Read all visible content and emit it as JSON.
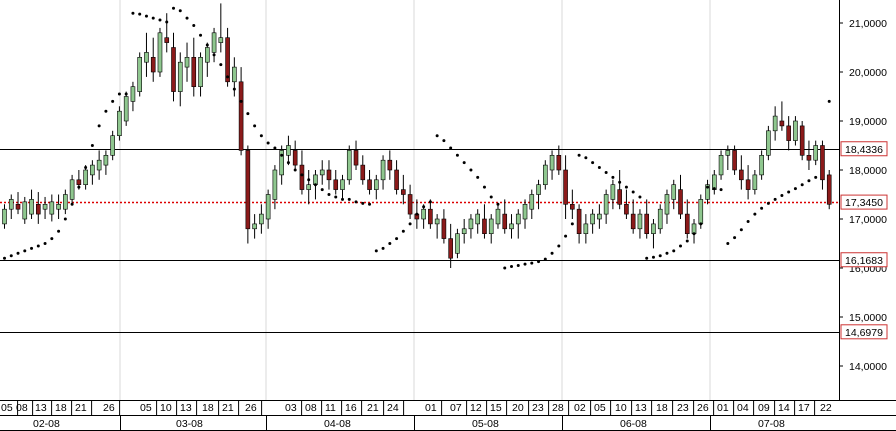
{
  "chart_data": {
    "type": "candlestick",
    "title": "",
    "xlabel": "",
    "ylabel": "",
    "ylim": [
      13.4,
      21.35
    ],
    "y_ticks": [
      "21,0000",
      "20,0000",
      "19,0000",
      "18,0000",
      "17,0000",
      "16,0000",
      "15,0000",
      "14,0000"
    ],
    "day_ticks": [
      "05",
      "08",
      "13",
      "18",
      "21",
      "26",
      "05",
      "10",
      "13",
      "18",
      "21",
      "26",
      "03",
      "08",
      "11",
      "16",
      "21",
      "24",
      "01",
      "07",
      "12",
      "15",
      "20",
      "23",
      "28",
      "02",
      "05",
      "10",
      "13",
      "18",
      "23",
      "26",
      "01",
      "04",
      "09",
      "14",
      "17",
      "22"
    ],
    "month_labels": [
      "02-08",
      "03-08",
      "04-08",
      "05-08",
      "06-08",
      "07-08"
    ],
    "grid": "vertical month dividers only",
    "horizontal_levels": [
      {
        "value": 18.4336,
        "label": "18,4336",
        "style": "solid"
      },
      {
        "value": 17.345,
        "label": "17,3450",
        "style": "dotted-red"
      },
      {
        "value": 16.1683,
        "label": "16,1683",
        "style": "solid"
      },
      {
        "value": 14.6979,
        "label": "14,6979",
        "style": "solid"
      }
    ],
    "colors": {
      "up": "#8fc78f",
      "down": "#8b1a1a",
      "level_label_border": "#cc3333",
      "current_line": "#dd0000"
    },
    "candles": [
      [
        16.9,
        17.3,
        16.8,
        17.2
      ],
      [
        17.2,
        17.5,
        17.0,
        17.4
      ],
      [
        17.3,
        17.55,
        17.1,
        17.2
      ],
      [
        17.0,
        17.45,
        16.9,
        17.35
      ],
      [
        17.1,
        17.6,
        17.0,
        17.4
      ],
      [
        17.3,
        17.55,
        16.9,
        17.1
      ],
      [
        17.2,
        17.45,
        17.0,
        17.3
      ],
      [
        17.1,
        17.5,
        16.95,
        17.35
      ],
      [
        17.2,
        17.5,
        17.0,
        17.3
      ],
      [
        17.2,
        17.6,
        17.1,
        17.5
      ],
      [
        17.4,
        17.9,
        17.3,
        17.8
      ],
      [
        17.8,
        18.0,
        17.6,
        17.7
      ],
      [
        17.7,
        18.1,
        17.6,
        18.0
      ],
      [
        17.9,
        18.2,
        17.7,
        18.1
      ],
      [
        18.0,
        18.4,
        17.8,
        18.2
      ],
      [
        18.1,
        18.4,
        17.9,
        18.3
      ],
      [
        18.3,
        18.8,
        18.2,
        18.7
      ],
      [
        18.7,
        19.3,
        18.6,
        19.2
      ],
      [
        19.0,
        19.6,
        18.9,
        19.5
      ],
      [
        19.4,
        19.8,
        19.2,
        19.7
      ],
      [
        19.6,
        20.4,
        19.5,
        20.3
      ],
      [
        20.2,
        20.8,
        19.9,
        20.4
      ],
      [
        20.3,
        20.7,
        19.8,
        20.0
      ],
      [
        20.0,
        20.9,
        19.9,
        20.8
      ],
      [
        20.7,
        21.2,
        20.4,
        20.6
      ],
      [
        20.5,
        20.8,
        19.4,
        19.6
      ],
      [
        19.6,
        20.4,
        19.3,
        20.2
      ],
      [
        20.1,
        20.6,
        19.8,
        20.3
      ],
      [
        20.3,
        20.7,
        19.5,
        19.7
      ],
      [
        19.7,
        20.4,
        19.5,
        20.3
      ],
      [
        20.2,
        20.6,
        19.9,
        20.5
      ],
      [
        20.4,
        20.9,
        20.2,
        20.8
      ],
      [
        20.6,
        21.4,
        20.4,
        20.7
      ],
      [
        20.7,
        20.9,
        19.7,
        19.8
      ],
      [
        19.8,
        20.3,
        19.5,
        20.1
      ],
      [
        19.8,
        20.1,
        18.3,
        18.4
      ],
      [
        18.4,
        18.5,
        16.5,
        16.8
      ],
      [
        16.8,
        17.1,
        16.6,
        16.9
      ],
      [
        16.9,
        17.3,
        16.7,
        17.1
      ],
      [
        17.0,
        17.6,
        16.8,
        17.5
      ],
      [
        17.4,
        18.1,
        17.2,
        18.0
      ],
      [
        17.9,
        18.5,
        17.7,
        18.4
      ],
      [
        18.3,
        18.7,
        18.1,
        18.5
      ],
      [
        18.4,
        18.6,
        18.0,
        18.1
      ],
      [
        18.1,
        18.4,
        17.5,
        17.6
      ],
      [
        17.6,
        18.0,
        17.3,
        17.7
      ],
      [
        17.7,
        18.0,
        17.4,
        17.9
      ],
      [
        17.9,
        18.2,
        17.7,
        18.0
      ],
      [
        18.0,
        18.2,
        17.6,
        17.8
      ],
      [
        17.8,
        18.0,
        17.5,
        17.6
      ],
      [
        17.6,
        17.9,
        17.4,
        17.8
      ],
      [
        17.8,
        18.5,
        17.7,
        18.4
      ],
      [
        18.4,
        18.6,
        18.0,
        18.1
      ],
      [
        18.1,
        18.3,
        17.7,
        17.8
      ],
      [
        17.8,
        18.0,
        17.5,
        17.6
      ],
      [
        17.6,
        17.9,
        17.4,
        17.8
      ],
      [
        17.8,
        18.3,
        17.6,
        18.2
      ],
      [
        18.2,
        18.4,
        17.8,
        18.0
      ],
      [
        18.0,
        18.2,
        17.5,
        17.6
      ],
      [
        17.6,
        17.9,
        17.3,
        17.5
      ],
      [
        17.5,
        17.7,
        17.0,
        17.1
      ],
      [
        17.1,
        17.4,
        16.8,
        17.0
      ],
      [
        17.0,
        17.3,
        16.8,
        17.2
      ],
      [
        17.2,
        17.4,
        16.8,
        16.9
      ],
      [
        16.9,
        17.1,
        16.6,
        17.0
      ],
      [
        17.0,
        17.2,
        16.5,
        16.6
      ],
      [
        16.6,
        16.9,
        16.0,
        16.2
      ],
      [
        16.3,
        16.8,
        16.2,
        16.7
      ],
      [
        16.7,
        17.0,
        16.5,
        16.8
      ],
      [
        16.8,
        17.1,
        16.6,
        17.0
      ],
      [
        16.9,
        17.2,
        16.7,
        17.1
      ],
      [
        17.0,
        17.3,
        16.6,
        16.7
      ],
      [
        16.7,
        17.1,
        16.5,
        17.0
      ],
      [
        16.9,
        17.3,
        16.8,
        17.2
      ],
      [
        17.1,
        17.4,
        16.7,
        16.8
      ],
      [
        16.8,
        17.1,
        16.6,
        16.9
      ],
      [
        16.9,
        17.2,
        16.6,
        17.1
      ],
      [
        17.0,
        17.4,
        16.8,
        17.3
      ],
      [
        17.2,
        17.6,
        17.0,
        17.5
      ],
      [
        17.5,
        17.8,
        17.2,
        17.7
      ],
      [
        17.7,
        18.2,
        17.6,
        18.1
      ],
      [
        18.0,
        18.4,
        17.8,
        18.3
      ],
      [
        18.3,
        18.5,
        17.9,
        18.0
      ],
      [
        18.0,
        18.3,
        17.0,
        17.3
      ],
      [
        17.3,
        17.6,
        17.0,
        17.2
      ],
      [
        17.2,
        17.3,
        16.5,
        16.7
      ],
      [
        16.7,
        17.1,
        16.5,
        16.9
      ],
      [
        16.9,
        17.2,
        16.7,
        17.1
      ],
      [
        17.0,
        17.3,
        16.8,
        17.1
      ],
      [
        17.1,
        17.6,
        16.9,
        17.5
      ],
      [
        17.4,
        17.8,
        17.2,
        17.7
      ],
      [
        17.6,
        18.0,
        17.2,
        17.3
      ],
      [
        17.3,
        17.6,
        17.0,
        17.1
      ],
      [
        17.1,
        17.4,
        16.7,
        16.8
      ],
      [
        16.8,
        17.2,
        16.6,
        17.1
      ],
      [
        17.1,
        17.4,
        16.6,
        16.7
      ],
      [
        16.7,
        17.0,
        16.4,
        16.9
      ],
      [
        16.8,
        17.3,
        16.7,
        17.2
      ],
      [
        17.1,
        17.6,
        16.9,
        17.5
      ],
      [
        17.4,
        17.8,
        17.2,
        17.7
      ],
      [
        17.6,
        17.9,
        17.0,
        17.1
      ],
      [
        17.1,
        17.4,
        16.6,
        16.7
      ],
      [
        16.7,
        17.0,
        16.5,
        16.9
      ],
      [
        16.9,
        17.5,
        16.8,
        17.4
      ],
      [
        17.4,
        17.8,
        17.3,
        17.7
      ],
      [
        17.6,
        18.0,
        17.5,
        17.9
      ],
      [
        17.9,
        18.4,
        17.8,
        18.3
      ],
      [
        18.3,
        18.5,
        18.0,
        18.4
      ],
      [
        18.4,
        18.5,
        17.9,
        18.0
      ],
      [
        18.0,
        18.3,
        17.6,
        17.8
      ],
      [
        17.8,
        18.1,
        17.4,
        17.6
      ],
      [
        17.6,
        18.0,
        17.5,
        17.9
      ],
      [
        17.9,
        18.4,
        17.8,
        18.3
      ],
      [
        18.3,
        18.9,
        18.2,
        18.8
      ],
      [
        18.8,
        19.3,
        18.6,
        19.1
      ],
      [
        19.0,
        19.4,
        18.8,
        18.9
      ],
      [
        18.9,
        19.1,
        18.4,
        18.6
      ],
      [
        18.6,
        19.1,
        18.5,
        19.0
      ],
      [
        18.9,
        19.0,
        18.2,
        18.3
      ],
      [
        18.3,
        18.6,
        18.0,
        18.2
      ],
      [
        18.2,
        18.6,
        18.1,
        18.5
      ],
      [
        18.5,
        18.6,
        17.6,
        17.8
      ],
      [
        17.9,
        18.0,
        17.2,
        17.3
      ]
    ],
    "parabolic_sar": [
      [
        0,
        16.2
      ],
      [
        1,
        16.25
      ],
      [
        2,
        16.3
      ],
      [
        3,
        16.35
      ],
      [
        4,
        16.4
      ],
      [
        5,
        16.45
      ],
      [
        6,
        16.5
      ],
      [
        7,
        16.6
      ],
      [
        8,
        16.75
      ],
      [
        9,
        17.0
      ],
      [
        10,
        17.3
      ],
      [
        11,
        17.65
      ],
      [
        12,
        18.05
      ],
      [
        13,
        18.5
      ],
      [
        14,
        18.9
      ],
      [
        15,
        19.2
      ],
      [
        16,
        19.4
      ],
      [
        17,
        19.55
      ],
      [
        18,
        19.55
      ],
      [
        19,
        21.2
      ],
      [
        20,
        21.18
      ],
      [
        21,
        21.14
      ],
      [
        22,
        21.1
      ],
      [
        23,
        21.06
      ],
      [
        24,
        21.02
      ],
      [
        25,
        21.3
      ],
      [
        26,
        21.25
      ],
      [
        27,
        21.1
      ],
      [
        28,
        20.95
      ],
      [
        29,
        20.75
      ],
      [
        30,
        20.55
      ],
      [
        31,
        20.35
      ],
      [
        32,
        20.15
      ],
      [
        33,
        19.9
      ],
      [
        34,
        19.65
      ],
      [
        35,
        19.4
      ],
      [
        36,
        19.15
      ],
      [
        37,
        18.9
      ],
      [
        38,
        18.7
      ],
      [
        39,
        18.55
      ],
      [
        40,
        18.45
      ],
      [
        41,
        18.3
      ],
      [
        42,
        18.15
      ],
      [
        43,
        18.0
      ],
      [
        44,
        17.9
      ],
      [
        45,
        17.8
      ],
      [
        46,
        17.7
      ],
      [
        47,
        17.6
      ],
      [
        48,
        17.5
      ],
      [
        49,
        17.45
      ],
      [
        50,
        17.4
      ],
      [
        51,
        17.4
      ],
      [
        52,
        17.35
      ],
      [
        53,
        17.32
      ],
      [
        54,
        17.3
      ],
      [
        55,
        16.35
      ],
      [
        56,
        16.4
      ],
      [
        57,
        16.5
      ],
      [
        58,
        16.6
      ],
      [
        59,
        16.75
      ],
      [
        60,
        16.9
      ],
      [
        61,
        17.1
      ],
      [
        62,
        17.25
      ],
      [
        63,
        17.35
      ],
      [
        64,
        18.7
      ],
      [
        65,
        18.6
      ],
      [
        66,
        18.45
      ],
      [
        67,
        18.3
      ],
      [
        68,
        18.15
      ],
      [
        69,
        18.0
      ],
      [
        70,
        17.85
      ],
      [
        71,
        17.65
      ],
      [
        72,
        17.45
      ],
      [
        73,
        17.3
      ],
      [
        74,
        16.0
      ],
      [
        75,
        16.03
      ],
      [
        76,
        16.05
      ],
      [
        77,
        16.08
      ],
      [
        78,
        16.1
      ],
      [
        79,
        16.13
      ],
      [
        80,
        16.18
      ],
      [
        81,
        16.3
      ],
      [
        82,
        16.45
      ],
      [
        83,
        16.65
      ],
      [
        84,
        16.9
      ],
      [
        85,
        18.3
      ],
      [
        86,
        18.25
      ],
      [
        87,
        18.15
      ],
      [
        88,
        18.05
      ],
      [
        89,
        17.95
      ],
      [
        90,
        17.85
      ],
      [
        91,
        17.75
      ],
      [
        92,
        17.65
      ],
      [
        93,
        17.55
      ],
      [
        94,
        17.45
      ],
      [
        95,
        16.2
      ],
      [
        96,
        16.22
      ],
      [
        97,
        16.25
      ],
      [
        98,
        16.3
      ],
      [
        99,
        16.35
      ],
      [
        100,
        16.45
      ],
      [
        101,
        16.55
      ],
      [
        102,
        16.7
      ],
      [
        103,
        16.9
      ],
      [
        104,
        17.65
      ],
      [
        105,
        17.62
      ],
      [
        106,
        17.6
      ],
      [
        107,
        16.5
      ],
      [
        108,
        16.62
      ],
      [
        109,
        16.78
      ],
      [
        110,
        16.95
      ],
      [
        111,
        17.1
      ],
      [
        112,
        17.22
      ],
      [
        113,
        17.32
      ],
      [
        114,
        17.4
      ],
      [
        115,
        17.48
      ],
      [
        116,
        17.55
      ],
      [
        117,
        17.62
      ],
      [
        118,
        17.7
      ],
      [
        119,
        17.78
      ],
      [
        120,
        17.85
      ],
      [
        122,
        19.4
      ]
    ]
  }
}
